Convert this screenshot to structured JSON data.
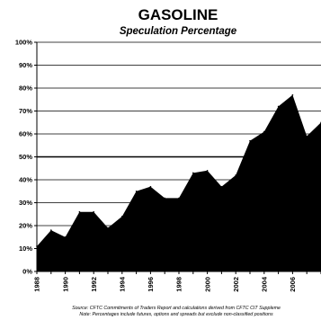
{
  "chart_data": {
    "type": "area",
    "title": "GASOLINE",
    "subtitle": "Speculation Percentage",
    "xlabel": "",
    "ylabel": "",
    "x": [
      1988,
      1989,
      1990,
      1991,
      1992,
      1993,
      1994,
      1995,
      1996,
      1997,
      1998,
      1999,
      2000,
      2001,
      2002,
      2003,
      2004,
      2005,
      2006,
      2007,
      2008
    ],
    "values": [
      11,
      18,
      15,
      26,
      26,
      19,
      24,
      35,
      37,
      32,
      32,
      43,
      44,
      37,
      42,
      57,
      61,
      72,
      77,
      59,
      65
    ],
    "xticks": [
      "1988",
      "1990",
      "1992",
      "1994",
      "1996",
      "1998",
      "2000",
      "2002",
      "2004",
      "2006"
    ],
    "yticks": [
      "0%",
      "10%",
      "20%",
      "30%",
      "40%",
      "50%",
      "60%",
      "70%",
      "80%",
      "90%",
      "100%"
    ],
    "ylim": [
      0,
      100
    ],
    "xlim": [
      1988,
      2008
    ],
    "grid": true,
    "fill_color": "#000000",
    "source_note": "Source: CFTC Commitments of Traders Report and calculations derived from CFTC CIT Suppleme",
    "note": "Note: Percentages include futures, options and spreads but exclude non-classified positions"
  }
}
